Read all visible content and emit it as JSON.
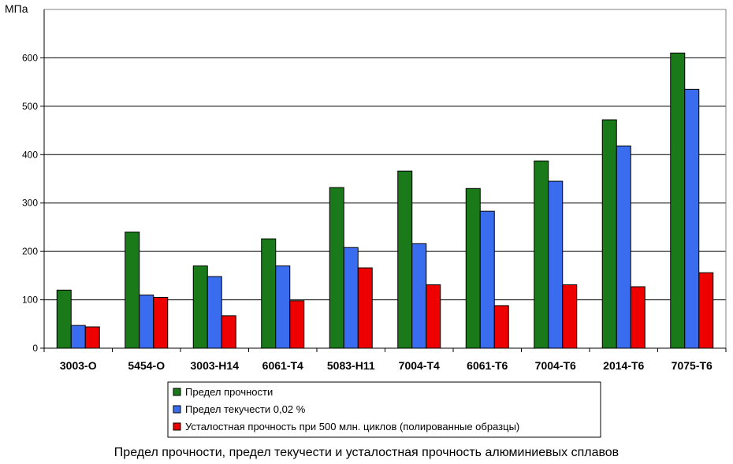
{
  "chart_data": {
    "type": "bar",
    "unit_label": "МПа",
    "title": "Предел прочности, предел текучести и усталостная прочность алюминиевых сплавов",
    "categories": [
      "3003-O",
      "5454-O",
      "3003-H14",
      "6061-T4",
      "5083-H11",
      "7004-T4",
      "6061-T6",
      "7004-T6",
      "2014-T6",
      "7075-T6"
    ],
    "series": [
      {
        "name": "Предел прочности",
        "color": "#1a7a1a",
        "values": [
          120,
          240,
          170,
          226,
          332,
          366,
          330,
          387,
          472,
          610
        ]
      },
      {
        "name": "Предел текучести 0,02 %",
        "color": "#3a6cf0",
        "values": [
          47,
          110,
          148,
          170,
          208,
          216,
          283,
          345,
          418,
          535
        ]
      },
      {
        "name": "Усталостная прочность при 500 млн. циклов (полированные образцы)",
        "color": "#ee0000",
        "values": [
          44,
          105,
          67,
          98,
          166,
          131,
          88,
          131,
          127,
          156
        ]
      }
    ],
    "ylim": [
      0,
      700
    ],
    "yticks": [
      0,
      100,
      200,
      300,
      400,
      500,
      600
    ],
    "grid": true,
    "legend_position": "bottom"
  }
}
